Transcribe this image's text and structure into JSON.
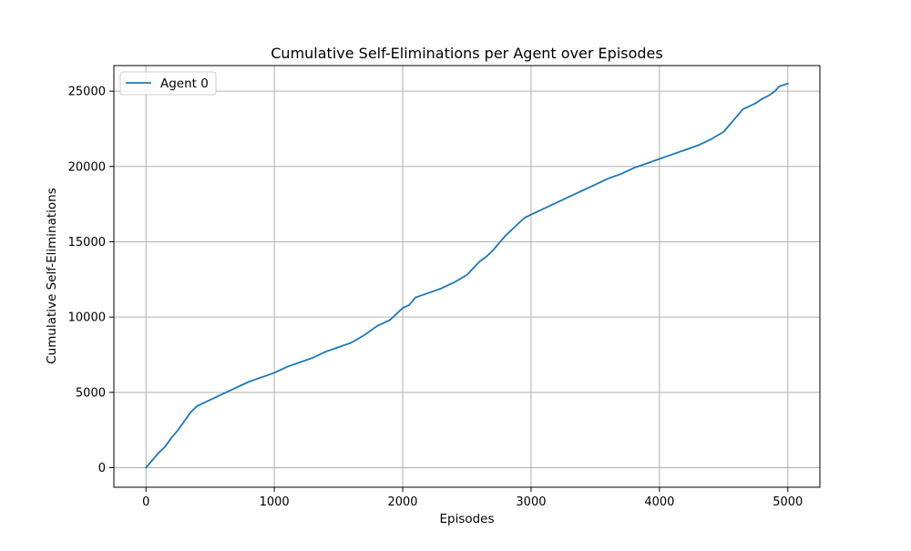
{
  "chart_data": {
    "type": "line",
    "title": "Cumulative Self-Eliminations per Agent over Episodes",
    "xlabel": "Episodes",
    "ylabel": "Cumulative Self-Eliminations",
    "xlim": [
      -250,
      5250
    ],
    "ylim": [
      -1300,
      26700
    ],
    "xticks": [
      0,
      1000,
      2000,
      3000,
      4000,
      5000
    ],
    "yticks": [
      0,
      5000,
      10000,
      15000,
      20000,
      25000
    ],
    "grid": true,
    "legend_position": "upper-left",
    "colors": {
      "series": "#1f77b4",
      "grid": "#b0b0b0",
      "axes": "#000000"
    },
    "series": [
      {
        "name": "Agent 0",
        "x": [
          0,
          50,
          100,
          150,
          200,
          250,
          300,
          350,
          400,
          450,
          500,
          600,
          700,
          800,
          900,
          1000,
          1100,
          1200,
          1300,
          1400,
          1500,
          1600,
          1700,
          1800,
          1900,
          1950,
          2000,
          2050,
          2080,
          2100,
          2150,
          2200,
          2300,
          2400,
          2500,
          2600,
          2650,
          2700,
          2800,
          2900,
          2950,
          3000,
          3100,
          3200,
          3300,
          3400,
          3500,
          3600,
          3700,
          3800,
          3900,
          4000,
          4100,
          4200,
          4300,
          4400,
          4500,
          4550,
          4600,
          4650,
          4700,
          4750,
          4800,
          4850,
          4900,
          4930,
          4960,
          5000
        ],
        "y": [
          0,
          500,
          1000,
          1400,
          2000,
          2500,
          3100,
          3700,
          4100,
          4300,
          4500,
          4900,
          5300,
          5700,
          6000,
          6300,
          6700,
          7000,
          7300,
          7700,
          8000,
          8300,
          8800,
          9400,
          9800,
          10200,
          10600,
          10800,
          11100,
          11300,
          11450,
          11600,
          11900,
          12300,
          12800,
          13700,
          14000,
          14400,
          15400,
          16200,
          16600,
          16800,
          17200,
          17600,
          18000,
          18400,
          18800,
          19200,
          19500,
          19900,
          20200,
          20500,
          20800,
          21100,
          21400,
          21800,
          22300,
          22800,
          23300,
          23800,
          24000,
          24200,
          24500,
          24700,
          25000,
          25300,
          25400,
          25500
        ]
      }
    ]
  }
}
